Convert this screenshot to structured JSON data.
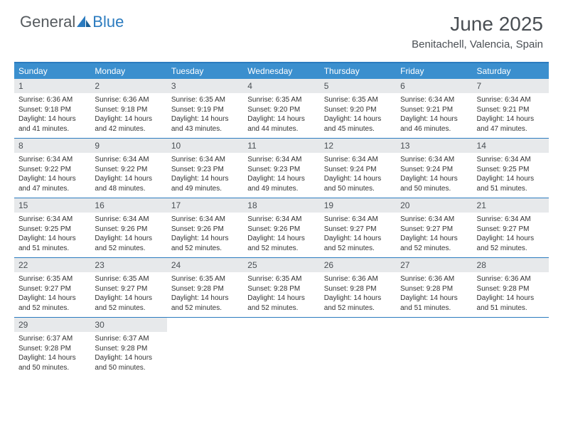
{
  "brand": {
    "word1": "General",
    "word2": "Blue"
  },
  "title": "June 2025",
  "location": "Benitachell, Valencia, Spain",
  "colors": {
    "header_bg": "#3b8fce",
    "border": "#2b7bbf",
    "daynum_bg": "#e7e9eb",
    "text": "#333333",
    "title_text": "#4a4f54"
  },
  "day_names": [
    "Sunday",
    "Monday",
    "Tuesday",
    "Wednesday",
    "Thursday",
    "Friday",
    "Saturday"
  ],
  "weeks": [
    [
      {
        "n": "1",
        "sr": "Sunrise: 6:36 AM",
        "ss": "Sunset: 9:18 PM",
        "d1": "Daylight: 14 hours",
        "d2": "and 41 minutes."
      },
      {
        "n": "2",
        "sr": "Sunrise: 6:36 AM",
        "ss": "Sunset: 9:18 PM",
        "d1": "Daylight: 14 hours",
        "d2": "and 42 minutes."
      },
      {
        "n": "3",
        "sr": "Sunrise: 6:35 AM",
        "ss": "Sunset: 9:19 PM",
        "d1": "Daylight: 14 hours",
        "d2": "and 43 minutes."
      },
      {
        "n": "4",
        "sr": "Sunrise: 6:35 AM",
        "ss": "Sunset: 9:20 PM",
        "d1": "Daylight: 14 hours",
        "d2": "and 44 minutes."
      },
      {
        "n": "5",
        "sr": "Sunrise: 6:35 AM",
        "ss": "Sunset: 9:20 PM",
        "d1": "Daylight: 14 hours",
        "d2": "and 45 minutes."
      },
      {
        "n": "6",
        "sr": "Sunrise: 6:34 AM",
        "ss": "Sunset: 9:21 PM",
        "d1": "Daylight: 14 hours",
        "d2": "and 46 minutes."
      },
      {
        "n": "7",
        "sr": "Sunrise: 6:34 AM",
        "ss": "Sunset: 9:21 PM",
        "d1": "Daylight: 14 hours",
        "d2": "and 47 minutes."
      }
    ],
    [
      {
        "n": "8",
        "sr": "Sunrise: 6:34 AM",
        "ss": "Sunset: 9:22 PM",
        "d1": "Daylight: 14 hours",
        "d2": "and 47 minutes."
      },
      {
        "n": "9",
        "sr": "Sunrise: 6:34 AM",
        "ss": "Sunset: 9:22 PM",
        "d1": "Daylight: 14 hours",
        "d2": "and 48 minutes."
      },
      {
        "n": "10",
        "sr": "Sunrise: 6:34 AM",
        "ss": "Sunset: 9:23 PM",
        "d1": "Daylight: 14 hours",
        "d2": "and 49 minutes."
      },
      {
        "n": "11",
        "sr": "Sunrise: 6:34 AM",
        "ss": "Sunset: 9:23 PM",
        "d1": "Daylight: 14 hours",
        "d2": "and 49 minutes."
      },
      {
        "n": "12",
        "sr": "Sunrise: 6:34 AM",
        "ss": "Sunset: 9:24 PM",
        "d1": "Daylight: 14 hours",
        "d2": "and 50 minutes."
      },
      {
        "n": "13",
        "sr": "Sunrise: 6:34 AM",
        "ss": "Sunset: 9:24 PM",
        "d1": "Daylight: 14 hours",
        "d2": "and 50 minutes."
      },
      {
        "n": "14",
        "sr": "Sunrise: 6:34 AM",
        "ss": "Sunset: 9:25 PM",
        "d1": "Daylight: 14 hours",
        "d2": "and 51 minutes."
      }
    ],
    [
      {
        "n": "15",
        "sr": "Sunrise: 6:34 AM",
        "ss": "Sunset: 9:25 PM",
        "d1": "Daylight: 14 hours",
        "d2": "and 51 minutes."
      },
      {
        "n": "16",
        "sr": "Sunrise: 6:34 AM",
        "ss": "Sunset: 9:26 PM",
        "d1": "Daylight: 14 hours",
        "d2": "and 52 minutes."
      },
      {
        "n": "17",
        "sr": "Sunrise: 6:34 AM",
        "ss": "Sunset: 9:26 PM",
        "d1": "Daylight: 14 hours",
        "d2": "and 52 minutes."
      },
      {
        "n": "18",
        "sr": "Sunrise: 6:34 AM",
        "ss": "Sunset: 9:26 PM",
        "d1": "Daylight: 14 hours",
        "d2": "and 52 minutes."
      },
      {
        "n": "19",
        "sr": "Sunrise: 6:34 AM",
        "ss": "Sunset: 9:27 PM",
        "d1": "Daylight: 14 hours",
        "d2": "and 52 minutes."
      },
      {
        "n": "20",
        "sr": "Sunrise: 6:34 AM",
        "ss": "Sunset: 9:27 PM",
        "d1": "Daylight: 14 hours",
        "d2": "and 52 minutes."
      },
      {
        "n": "21",
        "sr": "Sunrise: 6:34 AM",
        "ss": "Sunset: 9:27 PM",
        "d1": "Daylight: 14 hours",
        "d2": "and 52 minutes."
      }
    ],
    [
      {
        "n": "22",
        "sr": "Sunrise: 6:35 AM",
        "ss": "Sunset: 9:27 PM",
        "d1": "Daylight: 14 hours",
        "d2": "and 52 minutes."
      },
      {
        "n": "23",
        "sr": "Sunrise: 6:35 AM",
        "ss": "Sunset: 9:27 PM",
        "d1": "Daylight: 14 hours",
        "d2": "and 52 minutes."
      },
      {
        "n": "24",
        "sr": "Sunrise: 6:35 AM",
        "ss": "Sunset: 9:28 PM",
        "d1": "Daylight: 14 hours",
        "d2": "and 52 minutes."
      },
      {
        "n": "25",
        "sr": "Sunrise: 6:35 AM",
        "ss": "Sunset: 9:28 PM",
        "d1": "Daylight: 14 hours",
        "d2": "and 52 minutes."
      },
      {
        "n": "26",
        "sr": "Sunrise: 6:36 AM",
        "ss": "Sunset: 9:28 PM",
        "d1": "Daylight: 14 hours",
        "d2": "and 52 minutes."
      },
      {
        "n": "27",
        "sr": "Sunrise: 6:36 AM",
        "ss": "Sunset: 9:28 PM",
        "d1": "Daylight: 14 hours",
        "d2": "and 51 minutes."
      },
      {
        "n": "28",
        "sr": "Sunrise: 6:36 AM",
        "ss": "Sunset: 9:28 PM",
        "d1": "Daylight: 14 hours",
        "d2": "and 51 minutes."
      }
    ],
    [
      {
        "n": "29",
        "sr": "Sunrise: 6:37 AM",
        "ss": "Sunset: 9:28 PM",
        "d1": "Daylight: 14 hours",
        "d2": "and 50 minutes."
      },
      {
        "n": "30",
        "sr": "Sunrise: 6:37 AM",
        "ss": "Sunset: 9:28 PM",
        "d1": "Daylight: 14 hours",
        "d2": "and 50 minutes."
      },
      {
        "empty": true
      },
      {
        "empty": true
      },
      {
        "empty": true
      },
      {
        "empty": true
      },
      {
        "empty": true
      }
    ]
  ]
}
